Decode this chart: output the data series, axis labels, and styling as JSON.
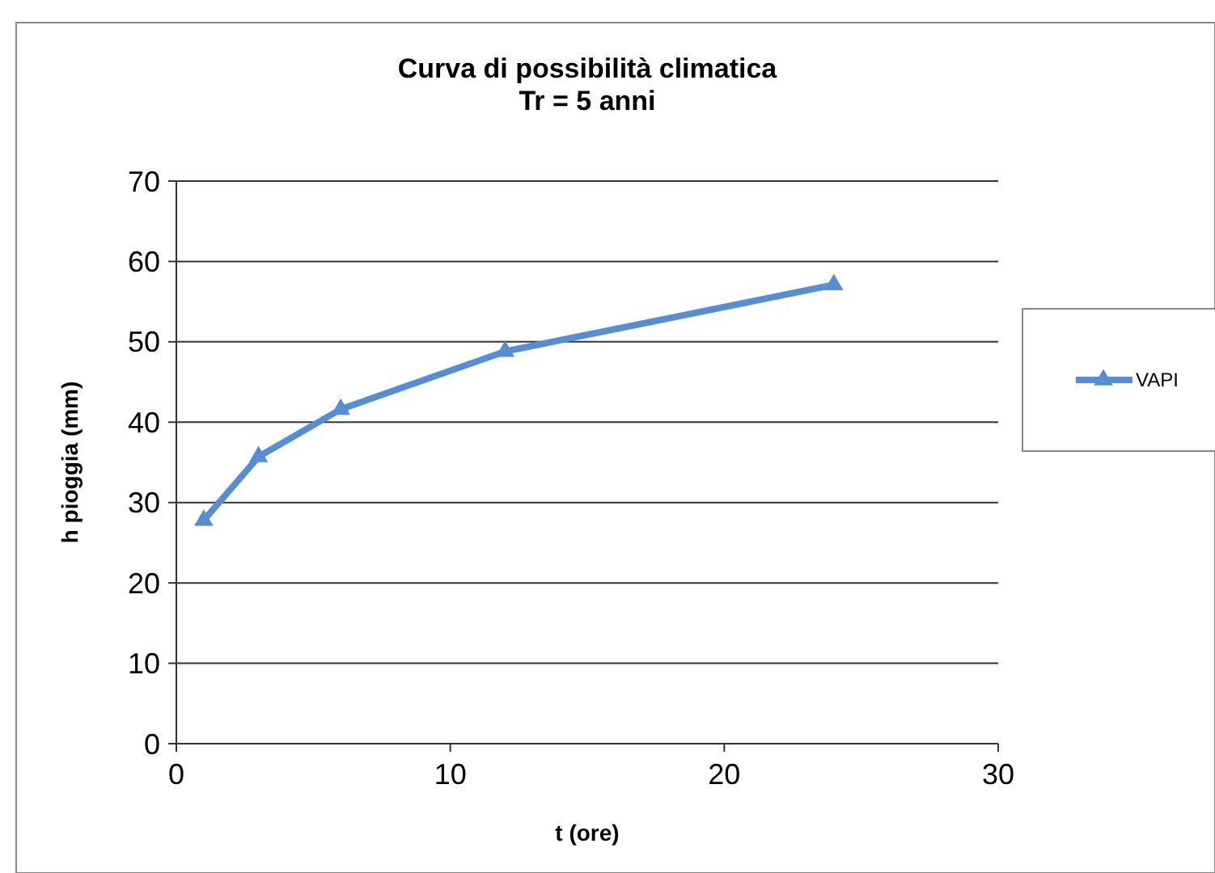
{
  "chart_data": {
    "type": "line",
    "title": "Curva di possibilità climatica\nTr = 5 anni",
    "xlabel": "t (ore)",
    "ylabel": "h pioggia (mm)",
    "x": [
      1,
      3,
      6,
      12,
      24
    ],
    "series": [
      {
        "name": "VAPI",
        "color": "#558ed5",
        "values": [
          27.8,
          35.7,
          41.6,
          48.8,
          57.1
        ]
      }
    ],
    "xlim": [
      0,
      30
    ],
    "xticks": [
      0,
      10,
      20,
      30
    ],
    "ylim": [
      0,
      70
    ],
    "yticks": [
      0,
      10,
      20,
      30,
      40,
      50,
      60,
      70
    ],
    "grid": "y",
    "legend": "right",
    "marker": "triangle",
    "line_style": "solid"
  }
}
